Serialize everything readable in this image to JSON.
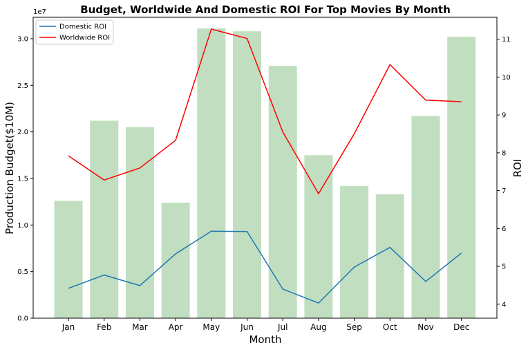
{
  "chart_data": {
    "type": "bar+line",
    "title": "Budget, Worldwide And Domestic ROI For Top Movies By Month",
    "xlabel": "Month",
    "ylabel_left": "Production Budget($10M)",
    "ylabel_right": "ROI",
    "left_axis_offset_label": "1e7",
    "categories": [
      "Jan",
      "Feb",
      "Mar",
      "Apr",
      "May",
      "Jun",
      "Jul",
      "Aug",
      "Sep",
      "Oct",
      "Nov",
      "Dec"
    ],
    "bars": {
      "axis": "left",
      "color": "#c1dfc0",
      "values": [
        12600000,
        21200000,
        20500000,
        12400000,
        31100000,
        30800000,
        27100000,
        17500000,
        14200000,
        13300000,
        21700000,
        30200000
      ]
    },
    "ylim_left": [
      0,
      32300000
    ],
    "left_ticks": [
      {
        "v": 0,
        "label": "0.0"
      },
      {
        "v": 5000000,
        "label": "0.5"
      },
      {
        "v": 10000000,
        "label": "1.0"
      },
      {
        "v": 15000000,
        "label": "1.5"
      },
      {
        "v": 20000000,
        "label": "2.0"
      },
      {
        "v": 25000000,
        "label": "2.5"
      },
      {
        "v": 30000000,
        "label": "3.0"
      }
    ],
    "ylim_right": [
      3.63,
      11.58
    ],
    "right_ticks": [
      {
        "v": 4,
        "label": "4"
      },
      {
        "v": 5,
        "label": "5"
      },
      {
        "v": 6,
        "label": "6"
      },
      {
        "v": 7,
        "label": "7"
      },
      {
        "v": 8,
        "label": "8"
      },
      {
        "v": 9,
        "label": "9"
      },
      {
        "v": 10,
        "label": "10"
      },
      {
        "v": 11,
        "label": "11"
      }
    ],
    "series": [
      {
        "name": "Domestic ROI",
        "axis": "right",
        "color": "#1f77b4",
        "values": [
          4.42,
          4.77,
          4.49,
          5.33,
          5.93,
          5.92,
          4.4,
          4.03,
          4.98,
          5.5,
          4.6,
          5.35
        ]
      },
      {
        "name": "Worldwide ROI",
        "axis": "right",
        "color": "#ff0000",
        "values": [
          7.92,
          7.28,
          7.6,
          8.33,
          11.27,
          11.02,
          8.55,
          6.92,
          8.5,
          10.33,
          9.39,
          9.35
        ]
      }
    ],
    "legend_position": "top-left",
    "grid": false
  }
}
